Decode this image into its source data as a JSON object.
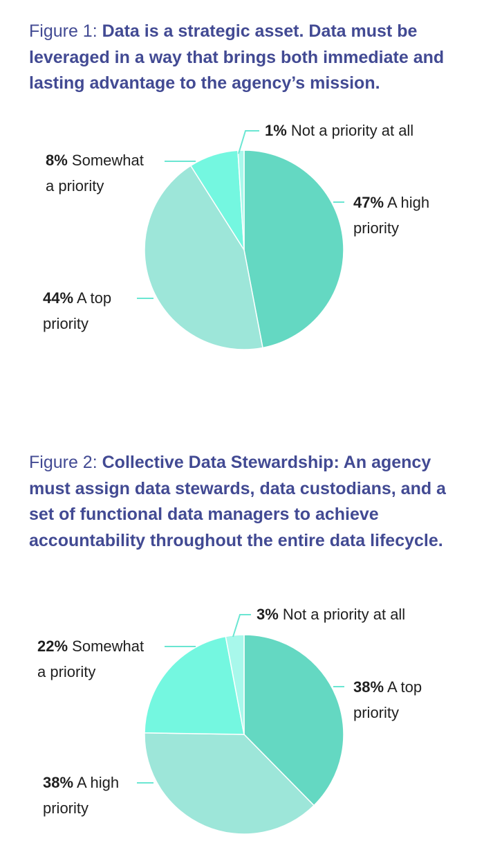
{
  "colors": {
    "title": "#424a93",
    "leader": "#6ae6d2",
    "text": "#1f1f1f"
  },
  "chart_data": [
    {
      "type": "pie",
      "prefix": "Figure 1:",
      "title": "Data is a strategic asset. Data must be leveraged in a way that brings both immediate and lasting advantage to the agency’s mission.",
      "slices": [
        {
          "value": 47,
          "pct": "47%",
          "lines": [
            "A high",
            "priority"
          ],
          "color": "#64d8c2"
        },
        {
          "value": 44,
          "pct": "44%",
          "lines": [
            "A top",
            "priority"
          ],
          "color": "#9de6d9"
        },
        {
          "value": 8,
          "pct": "8%",
          "lines": [
            "Somewhat",
            "a priority"
          ],
          "color": "#74f7e0"
        },
        {
          "value": 1,
          "pct": "1%",
          "lines": [
            "Not a priority at all"
          ],
          "color": "#a8f8eb"
        }
      ]
    },
    {
      "type": "pie",
      "prefix": "Figure 2:",
      "title": "Collective Data Stewardship: An agency must assign data stewards, data custodians, and a set of functional data managers to achieve accountability throughout the entire data lifecycle.",
      "slices": [
        {
          "value": 38,
          "pct": "38%",
          "lines": [
            "A top",
            "priority"
          ],
          "color": "#64d8c2"
        },
        {
          "value": 38,
          "pct": "38%",
          "lines": [
            "A high",
            "priority"
          ],
          "color": "#9de6d9"
        },
        {
          "value": 22,
          "pct": "22%",
          "lines": [
            "Somewhat",
            "a priority"
          ],
          "color": "#74f7e0"
        },
        {
          "value": 3,
          "pct": "3%",
          "lines": [
            "Not a priority at all"
          ],
          "color": "#a8f8eb"
        }
      ]
    }
  ]
}
